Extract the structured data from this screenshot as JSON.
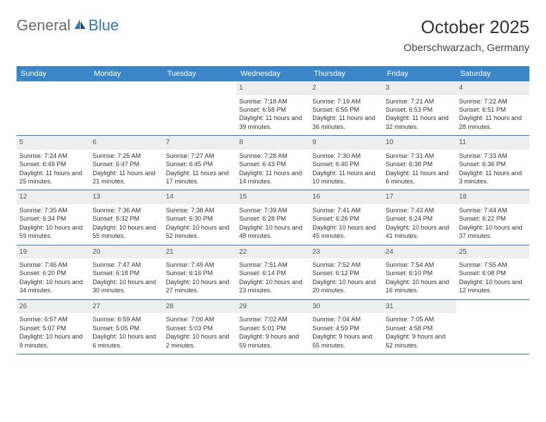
{
  "brand": {
    "part1": "General",
    "part2": "Blue"
  },
  "title": "October 2025",
  "location": "Oberschwarzach, Germany",
  "colors": {
    "header_bg": "#3b86c8",
    "header_text": "#ffffff",
    "rule": "#2f78bd",
    "daynum_bg": "#eeeeee",
    "text": "#333333"
  },
  "typography": {
    "title_fontsize_pt": 20,
    "location_fontsize_pt": 11,
    "weekday_fontsize_pt": 8,
    "cell_fontsize_pt": 7
  },
  "layout": {
    "columns": 7,
    "rows": 5,
    "first_weekday_index": 3
  },
  "weekdays": [
    "Sunday",
    "Monday",
    "Tuesday",
    "Wednesday",
    "Thursday",
    "Friday",
    "Saturday"
  ],
  "days": [
    {
      "n": 1,
      "sunrise": "7:18 AM",
      "sunset": "6:58 PM",
      "daylight": "11 hours and 39 minutes."
    },
    {
      "n": 2,
      "sunrise": "7:19 AM",
      "sunset": "6:55 PM",
      "daylight": "11 hours and 36 minutes."
    },
    {
      "n": 3,
      "sunrise": "7:21 AM",
      "sunset": "6:53 PM",
      "daylight": "11 hours and 32 minutes."
    },
    {
      "n": 4,
      "sunrise": "7:22 AM",
      "sunset": "6:51 PM",
      "daylight": "11 hours and 28 minutes."
    },
    {
      "n": 5,
      "sunrise": "7:24 AM",
      "sunset": "6:49 PM",
      "daylight": "11 hours and 25 minutes."
    },
    {
      "n": 6,
      "sunrise": "7:25 AM",
      "sunset": "6:47 PM",
      "daylight": "11 hours and 21 minutes."
    },
    {
      "n": 7,
      "sunrise": "7:27 AM",
      "sunset": "6:45 PM",
      "daylight": "11 hours and 17 minutes."
    },
    {
      "n": 8,
      "sunrise": "7:28 AM",
      "sunset": "6:43 PM",
      "daylight": "11 hours and 14 minutes."
    },
    {
      "n": 9,
      "sunrise": "7:30 AM",
      "sunset": "6:40 PM",
      "daylight": "11 hours and 10 minutes."
    },
    {
      "n": 10,
      "sunrise": "7:31 AM",
      "sunset": "6:38 PM",
      "daylight": "11 hours and 6 minutes."
    },
    {
      "n": 11,
      "sunrise": "7:33 AM",
      "sunset": "6:36 PM",
      "daylight": "11 hours and 3 minutes."
    },
    {
      "n": 12,
      "sunrise": "7:35 AM",
      "sunset": "6:34 PM",
      "daylight": "10 hours and 59 minutes."
    },
    {
      "n": 13,
      "sunrise": "7:36 AM",
      "sunset": "6:32 PM",
      "daylight": "10 hours and 55 minutes."
    },
    {
      "n": 14,
      "sunrise": "7:38 AM",
      "sunset": "6:30 PM",
      "daylight": "10 hours and 52 minutes."
    },
    {
      "n": 15,
      "sunrise": "7:39 AM",
      "sunset": "6:28 PM",
      "daylight": "10 hours and 48 minutes."
    },
    {
      "n": 16,
      "sunrise": "7:41 AM",
      "sunset": "6:26 PM",
      "daylight": "10 hours and 45 minutes."
    },
    {
      "n": 17,
      "sunrise": "7:43 AM",
      "sunset": "6:24 PM",
      "daylight": "10 hours and 41 minutes."
    },
    {
      "n": 18,
      "sunrise": "7:44 AM",
      "sunset": "6:22 PM",
      "daylight": "10 hours and 37 minutes."
    },
    {
      "n": 19,
      "sunrise": "7:46 AM",
      "sunset": "6:20 PM",
      "daylight": "10 hours and 34 minutes."
    },
    {
      "n": 20,
      "sunrise": "7:47 AM",
      "sunset": "6:18 PM",
      "daylight": "10 hours and 30 minutes."
    },
    {
      "n": 21,
      "sunrise": "7:49 AM",
      "sunset": "6:16 PM",
      "daylight": "10 hours and 27 minutes."
    },
    {
      "n": 22,
      "sunrise": "7:51 AM",
      "sunset": "6:14 PM",
      "daylight": "10 hours and 23 minutes."
    },
    {
      "n": 23,
      "sunrise": "7:52 AM",
      "sunset": "6:12 PM",
      "daylight": "10 hours and 20 minutes."
    },
    {
      "n": 24,
      "sunrise": "7:54 AM",
      "sunset": "6:10 PM",
      "daylight": "10 hours and 16 minutes."
    },
    {
      "n": 25,
      "sunrise": "7:55 AM",
      "sunset": "6:08 PM",
      "daylight": "10 hours and 12 minutes."
    },
    {
      "n": 26,
      "sunrise": "6:57 AM",
      "sunset": "5:07 PM",
      "daylight": "10 hours and 9 minutes."
    },
    {
      "n": 27,
      "sunrise": "6:59 AM",
      "sunset": "5:05 PM",
      "daylight": "10 hours and 6 minutes."
    },
    {
      "n": 28,
      "sunrise": "7:00 AM",
      "sunset": "5:03 PM",
      "daylight": "10 hours and 2 minutes."
    },
    {
      "n": 29,
      "sunrise": "7:02 AM",
      "sunset": "5:01 PM",
      "daylight": "9 hours and 59 minutes."
    },
    {
      "n": 30,
      "sunrise": "7:04 AM",
      "sunset": "4:59 PM",
      "daylight": "9 hours and 55 minutes."
    },
    {
      "n": 31,
      "sunrise": "7:05 AM",
      "sunset": "4:58 PM",
      "daylight": "9 hours and 52 minutes."
    }
  ],
  "labels": {
    "sunrise": "Sunrise:",
    "sunset": "Sunset:",
    "daylight": "Daylight:"
  }
}
